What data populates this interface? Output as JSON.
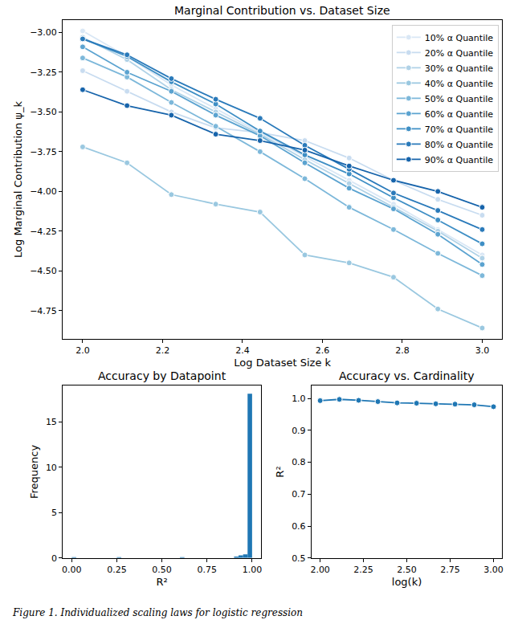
{
  "chart_data": [
    {
      "type": "line",
      "title": "Marginal Contribution vs. Dataset Size",
      "x_label": "Log Dataset Size k",
      "y_label": "Log Marginal Contribution ψ_k",
      "x": [
        2.0,
        2.111,
        2.222,
        2.333,
        2.444,
        2.556,
        2.667,
        2.778,
        2.889,
        3.0
      ],
      "series": [
        {
          "name": "10% α Quantile",
          "color": "#d9e7f5",
          "values": [
            -2.99,
            -3.15,
            -3.33,
            -3.48,
            -3.63,
            -3.78,
            -3.93,
            -4.08,
            -4.24,
            -4.4
          ]
        },
        {
          "name": "20% α Quantile",
          "color": "#c8dcf0",
          "values": [
            -3.24,
            -3.37,
            -3.5,
            -3.6,
            -3.63,
            -3.68,
            -3.79,
            -3.93,
            -4.05,
            -4.15
          ]
        },
        {
          "name": "30% α Quantile",
          "color": "#b0d2e7",
          "values": [
            -3.03,
            -3.17,
            -3.36,
            -3.5,
            -3.64,
            -3.8,
            -3.95,
            -4.1,
            -4.25,
            -4.42
          ]
        },
        {
          "name": "40% α Quantile",
          "color": "#9ac8e0",
          "values": [
            -3.72,
            -3.82,
            -4.02,
            -4.08,
            -4.13,
            -4.4,
            -4.45,
            -4.54,
            -4.74,
            -4.86
          ]
        },
        {
          "name": "50% α Quantile",
          "color": "#7db8da",
          "values": [
            -3.16,
            -3.28,
            -3.44,
            -3.59,
            -3.75,
            -3.92,
            -4.1,
            -4.24,
            -4.39,
            -4.53
          ]
        },
        {
          "name": "60% α Quantile",
          "color": "#5ba3d0",
          "values": [
            -3.09,
            -3.25,
            -3.37,
            -3.52,
            -3.65,
            -3.82,
            -3.98,
            -4.11,
            -4.27,
            -4.46
          ]
        },
        {
          "name": "70% α Quantile",
          "color": "#3f8fc5",
          "values": [
            -3.04,
            -3.15,
            -3.31,
            -3.45,
            -3.62,
            -3.77,
            -3.89,
            -4.04,
            -4.18,
            -4.33
          ]
        },
        {
          "name": "80% α Quantile",
          "color": "#2a7aba",
          "values": [
            -3.04,
            -3.14,
            -3.29,
            -3.42,
            -3.54,
            -3.71,
            -3.86,
            -4.01,
            -4.12,
            -4.24
          ]
        },
        {
          "name": "90% α Quantile",
          "color": "#1764ab",
          "values": [
            -3.36,
            -3.46,
            -3.52,
            -3.64,
            -3.68,
            -3.74,
            -3.84,
            -3.93,
            -4.0,
            -4.1
          ]
        }
      ],
      "marker": "circle",
      "xlim": [
        1.95,
        3.05
      ],
      "xticks": [
        {
          "value": 2.0,
          "label": "2.0"
        },
        {
          "value": 2.2,
          "label": "2.2"
        },
        {
          "value": 2.4,
          "label": "2.4"
        },
        {
          "value": 2.6,
          "label": "2.6"
        },
        {
          "value": 2.8,
          "label": "2.8"
        },
        {
          "value": 3.0,
          "label": "3.0"
        }
      ],
      "ylim": [
        -4.93,
        -2.92
      ],
      "yticks": [
        {
          "value": -3.0,
          "label": "−3.00"
        },
        {
          "value": -3.25,
          "label": "−3.25"
        },
        {
          "value": -3.5,
          "label": "−3.50"
        },
        {
          "value": -3.75,
          "label": "−3.75"
        },
        {
          "value": -4.0,
          "label": "−4.00"
        },
        {
          "value": -4.25,
          "label": "−4.25"
        },
        {
          "value": -4.5,
          "label": "−4.50"
        },
        {
          "value": -4.75,
          "label": "−4.75"
        }
      ],
      "legend": "upper right",
      "grid": false
    },
    {
      "type": "histogram",
      "title": "Accuracy by Datapoint",
      "x_label": "R²",
      "y_label": "Frequency",
      "bins": [
        0.0,
        0.025,
        0.05,
        0.075,
        0.1,
        0.125,
        0.15,
        0.175,
        0.2,
        0.225,
        0.25,
        0.275,
        0.3,
        0.325,
        0.35,
        0.375,
        0.4,
        0.425,
        0.45,
        0.475,
        0.5,
        0.525,
        0.55,
        0.575,
        0.6,
        0.625,
        0.65,
        0.675,
        0.7,
        0.725,
        0.75,
        0.775,
        0.8,
        0.825,
        0.85,
        0.875,
        0.9,
        0.925,
        0.95,
        0.975,
        1.0
      ],
      "counts": [
        0.1,
        0,
        0,
        0,
        0,
        0,
        0,
        0,
        0,
        0,
        0.1,
        0,
        0,
        0,
        0,
        0,
        0,
        0,
        0,
        0,
        0,
        0,
        0,
        0,
        0.1,
        0,
        0,
        0,
        0,
        0,
        0,
        0,
        0,
        0,
        0,
        0,
        0.15,
        0.3,
        0.4,
        18.1
      ],
      "color": "#1f77b4",
      "xlim": [
        -0.05,
        1.05
      ],
      "xticks": [
        {
          "value": 0.0,
          "label": "0.00"
        },
        {
          "value": 0.25,
          "label": "0.25"
        },
        {
          "value": 0.5,
          "label": "0.50"
        },
        {
          "value": 0.75,
          "label": "0.75"
        },
        {
          "value": 1.0,
          "label": "1.00"
        }
      ],
      "ylim": [
        0,
        19
      ],
      "yticks": [
        0,
        5,
        10,
        15
      ],
      "grid": false
    },
    {
      "type": "line",
      "title": "Accuracy vs. Cardinality",
      "x_label": "log(k)",
      "y_label": "R²",
      "x": [
        2.0,
        2.111,
        2.222,
        2.333,
        2.444,
        2.556,
        2.667,
        2.778,
        2.889,
        3.0
      ],
      "values": [
        0.993,
        0.997,
        0.994,
        0.99,
        0.986,
        0.985,
        0.983,
        0.982,
        0.98,
        0.974
      ],
      "color": "#1f77b4",
      "marker": "circle",
      "xlim": [
        1.95,
        3.05
      ],
      "xticks": [
        {
          "value": 2.0,
          "label": "2.00"
        },
        {
          "value": 2.25,
          "label": "2.25"
        },
        {
          "value": 2.5,
          "label": "2.50"
        },
        {
          "value": 2.75,
          "label": "2.75"
        },
        {
          "value": 3.0,
          "label": "3.00"
        }
      ],
      "ylim": [
        0.5,
        1.04
      ],
      "yticks": [
        {
          "value": 0.5,
          "label": "0.5"
        },
        {
          "value": 0.6,
          "label": "0.6"
        },
        {
          "value": 0.7,
          "label": "0.7"
        },
        {
          "value": 0.8,
          "label": "0.8"
        },
        {
          "value": 0.9,
          "label": "0.9"
        },
        {
          "value": 1.0,
          "label": "1.0"
        }
      ],
      "grid": false
    }
  ],
  "caption": "Figure 1. Individualized scaling laws for logistic regression"
}
